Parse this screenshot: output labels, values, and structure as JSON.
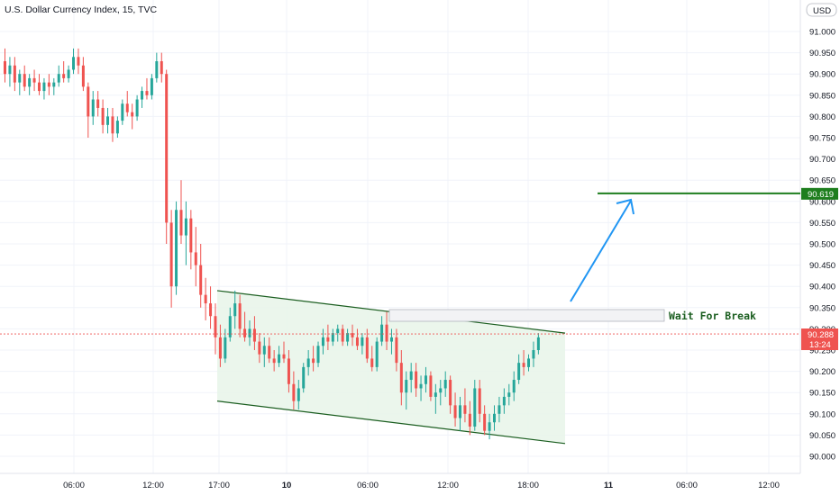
{
  "title": "U.S. Dollar Currency Index, 15, TVC",
  "currency_button": "USD",
  "chart_data": {
    "type": "candlestick",
    "y_ticks": [
      "91.000",
      "90.950",
      "90.900",
      "90.850",
      "90.800",
      "90.750",
      "90.700",
      "90.650",
      "90.600",
      "90.550",
      "90.500",
      "90.450",
      "90.400",
      "90.350",
      "90.300",
      "90.250",
      "90.200",
      "90.150",
      "90.100",
      "90.050",
      "90.000"
    ],
    "x_ticks": [
      "06:00",
      "12:00",
      "17:00",
      "10",
      "06:00",
      "12:00",
      "18:00",
      "11",
      "06:00",
      "12:00"
    ],
    "ylim": [
      89.96,
      91.05
    ],
    "candles": [
      [
        90.93,
        90.96,
        90.88,
        90.9
      ],
      [
        90.9,
        90.94,
        90.87,
        90.92
      ],
      [
        90.92,
        90.94,
        90.86,
        90.88
      ],
      [
        90.88,
        90.91,
        90.85,
        90.9
      ],
      [
        90.9,
        90.92,
        90.86,
        90.87
      ],
      [
        90.87,
        90.9,
        90.85,
        90.89
      ],
      [
        90.89,
        90.91,
        90.86,
        90.88
      ],
      [
        90.88,
        90.9,
        90.85,
        90.86
      ],
      [
        90.86,
        90.89,
        90.84,
        90.88
      ],
      [
        90.88,
        90.9,
        90.85,
        90.87
      ],
      [
        90.87,
        90.89,
        90.85,
        90.88
      ],
      [
        90.88,
        90.92,
        90.87,
        90.9
      ],
      [
        90.9,
        90.93,
        90.88,
        90.89
      ],
      [
        90.89,
        90.92,
        90.88,
        90.91
      ],
      [
        90.91,
        90.96,
        90.9,
        90.94
      ],
      [
        90.94,
        90.96,
        90.9,
        90.92
      ],
      [
        90.92,
        90.94,
        90.86,
        90.87
      ],
      [
        90.87,
        90.88,
        90.75,
        90.8
      ],
      [
        90.8,
        90.86,
        90.78,
        90.84
      ],
      [
        90.84,
        90.86,
        90.8,
        90.82
      ],
      [
        90.82,
        90.84,
        90.76,
        90.78
      ],
      [
        90.78,
        90.82,
        90.76,
        90.8
      ],
      [
        90.8,
        90.82,
        90.74,
        90.76
      ],
      [
        90.76,
        90.8,
        90.75,
        90.79
      ],
      [
        90.79,
        90.84,
        90.78,
        90.83
      ],
      [
        90.83,
        90.86,
        90.8,
        90.81
      ],
      [
        90.81,
        90.83,
        90.77,
        90.8
      ],
      [
        90.8,
        90.85,
        90.79,
        90.84
      ],
      [
        90.84,
        90.87,
        90.82,
        90.86
      ],
      [
        90.86,
        90.89,
        90.84,
        90.85
      ],
      [
        90.85,
        90.9,
        90.84,
        90.89
      ],
      [
        90.89,
        90.95,
        90.88,
        90.93
      ],
      [
        90.93,
        90.95,
        90.88,
        90.9
      ],
      [
        90.9,
        90.91,
        90.5,
        90.55
      ],
      [
        90.55,
        90.58,
        90.35,
        90.4
      ],
      [
        90.4,
        90.6,
        90.38,
        90.58
      ],
      [
        90.58,
        90.65,
        90.5,
        90.52
      ],
      [
        90.52,
        90.6,
        90.45,
        90.56
      ],
      [
        90.56,
        90.58,
        90.44,
        90.48
      ],
      [
        90.48,
        90.54,
        90.4,
        90.45
      ],
      [
        90.45,
        90.5,
        90.35,
        90.38
      ],
      [
        90.38,
        90.42,
        90.32,
        90.36
      ],
      [
        90.36,
        90.4,
        90.3,
        90.33
      ],
      [
        90.33,
        90.36,
        90.24,
        90.28
      ],
      [
        90.28,
        90.31,
        90.21,
        90.23
      ],
      [
        90.23,
        90.3,
        90.22,
        90.28
      ],
      [
        90.28,
        90.35,
        90.27,
        90.33
      ],
      [
        90.33,
        90.39,
        90.3,
        90.36
      ],
      [
        90.36,
        90.38,
        90.28,
        90.3
      ],
      [
        90.3,
        90.34,
        90.27,
        90.28
      ],
      [
        90.28,
        90.32,
        90.26,
        90.3
      ],
      [
        90.3,
        90.33,
        90.25,
        90.27
      ],
      [
        90.27,
        90.29,
        90.22,
        90.24
      ],
      [
        90.24,
        90.28,
        90.21,
        90.26
      ],
      [
        90.26,
        90.28,
        90.22,
        90.23
      ],
      [
        90.23,
        90.25,
        90.2,
        90.22
      ],
      [
        90.22,
        90.26,
        90.21,
        90.24
      ],
      [
        90.24,
        90.27,
        90.22,
        90.23
      ],
      [
        90.23,
        90.25,
        90.15,
        90.17
      ],
      [
        90.17,
        90.2,
        90.11,
        90.13
      ],
      [
        90.13,
        90.18,
        90.11,
        90.16
      ],
      [
        90.16,
        90.22,
        90.15,
        90.21
      ],
      [
        90.21,
        90.25,
        90.19,
        90.23
      ],
      [
        90.23,
        90.26,
        90.2,
        90.22
      ],
      [
        90.22,
        90.27,
        90.21,
        90.26
      ],
      [
        90.26,
        90.3,
        90.24,
        90.28
      ],
      [
        90.28,
        90.31,
        90.25,
        90.27
      ],
      [
        90.27,
        90.3,
        90.26,
        90.29
      ],
      [
        90.29,
        90.31,
        90.27,
        90.3
      ],
      [
        90.3,
        90.31,
        90.26,
        90.27
      ],
      [
        90.27,
        90.3,
        90.26,
        90.29
      ],
      [
        90.29,
        90.31,
        90.26,
        90.28
      ],
      [
        90.28,
        90.3,
        90.25,
        90.26
      ],
      [
        90.26,
        90.29,
        90.24,
        90.28
      ],
      [
        90.28,
        90.3,
        90.22,
        90.23
      ],
      [
        90.23,
        90.26,
        90.2,
        90.21
      ],
      [
        90.21,
        90.28,
        90.2,
        90.27
      ],
      [
        90.27,
        90.33,
        90.26,
        90.31
      ],
      [
        90.31,
        90.34,
        90.25,
        90.27
      ],
      [
        90.27,
        90.3,
        90.24,
        90.28
      ],
      [
        90.28,
        90.3,
        90.2,
        90.22
      ],
      [
        90.22,
        90.25,
        90.12,
        90.15
      ],
      [
        90.15,
        90.2,
        90.11,
        90.18
      ],
      [
        90.18,
        90.22,
        90.15,
        90.2
      ],
      [
        90.2,
        90.22,
        90.14,
        90.16
      ],
      [
        90.16,
        90.19,
        90.13,
        90.17
      ],
      [
        90.17,
        90.21,
        90.15,
        90.19
      ],
      [
        90.19,
        90.2,
        90.13,
        90.14
      ],
      [
        90.14,
        90.17,
        90.1,
        90.15
      ],
      [
        90.15,
        90.18,
        90.12,
        90.16
      ],
      [
        90.16,
        90.2,
        90.14,
        90.18
      ],
      [
        90.18,
        90.19,
        90.1,
        90.12
      ],
      [
        90.12,
        90.15,
        90.07,
        90.09
      ],
      [
        90.09,
        90.14,
        90.06,
        90.12
      ],
      [
        90.12,
        90.16,
        90.08,
        90.1
      ],
      [
        90.1,
        90.13,
        90.05,
        90.07
      ],
      [
        90.07,
        90.18,
        90.06,
        90.16
      ],
      [
        90.16,
        90.18,
        90.08,
        90.1
      ],
      [
        90.1,
        90.12,
        90.05,
        90.06
      ],
      [
        90.06,
        90.1,
        90.04,
        90.08
      ],
      [
        90.08,
        90.12,
        90.06,
        90.1
      ],
      [
        90.1,
        90.14,
        90.08,
        90.12
      ],
      [
        90.12,
        90.16,
        90.1,
        90.14
      ],
      [
        90.14,
        90.17,
        90.12,
        90.15
      ],
      [
        90.15,
        90.2,
        90.13,
        90.18
      ],
      [
        90.18,
        90.24,
        90.17,
        90.22
      ],
      [
        90.22,
        90.25,
        90.19,
        90.21
      ],
      [
        90.21,
        90.24,
        90.2,
        90.23
      ],
      [
        90.23,
        90.27,
        90.21,
        90.25
      ],
      [
        90.25,
        90.29,
        90.24,
        90.28
      ]
    ],
    "channel_upper": [
      [
        43,
        90.39
      ],
      [
        113,
        90.29
      ]
    ],
    "channel_lower": [
      [
        43,
        90.13
      ],
      [
        113,
        90.03
      ]
    ],
    "target_level": 90.619,
    "target_label": "90.619",
    "current_price_label": "90.288",
    "countdown_label": "13:24",
    "annotation_text": "Wait For Break",
    "colors": {
      "up": "#26a69a",
      "down": "#ef5350",
      "target": "#1e7e1e",
      "arrow": "#2196f3",
      "channel": "#1b5e20",
      "channel_fill": "#e8f5e9"
    }
  }
}
